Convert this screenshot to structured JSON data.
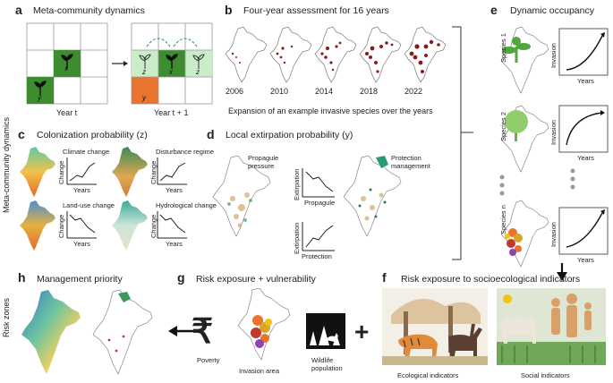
{
  "side": {
    "meta_dynamics": "Meta-community dynamics",
    "risk_zones": "Risk zones"
  },
  "a": {
    "letter": "a",
    "title": "Meta-community dynamics",
    "year_t": "Year t",
    "year_t1": "Year t + 1",
    "cells": [
      "x",
      "y",
      "z",
      "x",
      "z",
      "y"
    ]
  },
  "b": {
    "letter": "b",
    "title": "Four-year assessment for 16 years",
    "years": [
      "2006",
      "2010",
      "2014",
      "2018",
      "2022"
    ],
    "caption": "Expansion of an example invasive species over the years"
  },
  "c": {
    "letter": "c",
    "title": "Colonization probability (z)",
    "maps": [
      "Climate change",
      "Disturbance regime",
      "Land-use change",
      "Hydrological change"
    ],
    "axis_y": "Change",
    "axis_x": "Years"
  },
  "d": {
    "letter": "d",
    "title": "Local extirpation probability (y)",
    "propagule_pressure": "Propagule pressure",
    "protection_management": "Protection management",
    "chart1_y": "Extirpation",
    "chart1_x": "Propagule",
    "chart2_y": "Extirpation",
    "chart2_x": "Protection"
  },
  "e": {
    "letter": "e",
    "title": "Dynamic occupancy",
    "species": [
      "Species 1",
      "Species 2",
      "Species n"
    ],
    "invasion": "Invasion",
    "years": "Years"
  },
  "f": {
    "letter": "f",
    "title": "Risk exposure to socioecological indicators",
    "ecological": "Ecological indicators",
    "social": "Social indicators"
  },
  "g": {
    "letter": "g",
    "title": "Risk exposure + vulnerability",
    "poverty": "Poverty",
    "invasion_area": "Invasion area",
    "wildlife": "Wildlife population",
    "rupee": "₹",
    "plus": "+"
  },
  "h": {
    "letter": "h",
    "title": "Management priority"
  },
  "colors": {
    "green_light": "#c9ecc9",
    "green_dark": "#3d8c2f",
    "orange": "#e8742e",
    "red_points": "#8b1a1a"
  }
}
